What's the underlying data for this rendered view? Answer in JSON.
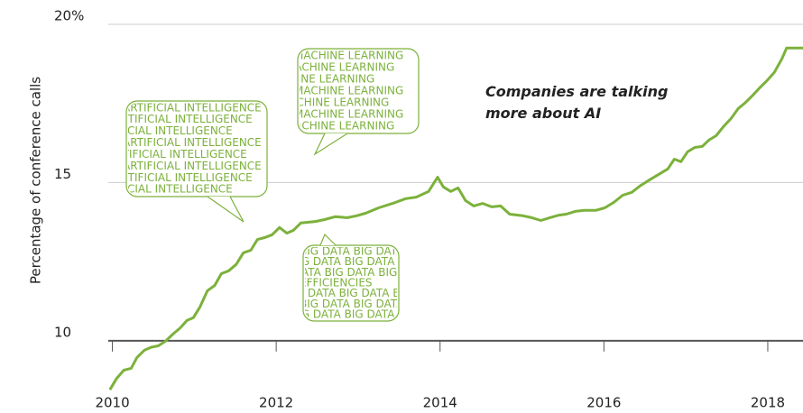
{
  "chart_data": {
    "type": "line",
    "y_axis_label": "Percentage of conference calls",
    "annotation": "Companies are talking more about AI",
    "bubbles": [
      {
        "lines": [
          "ARTIFICIAL INTELLIGENCE",
          "ARTIFICIAL INTELLIGENCE",
          "ARTIFICIAL INTELLIGENCE",
          "ARTIFICIAL INTELLIGENCE",
          "ARTIFICIAL INTELLIGENCE",
          "ARTIFICIAL INTELLIGENCE",
          "ARTIFICIAL INTELLIGENCE",
          "ARTIFICIAL INTELLIGENCE"
        ]
      },
      {
        "lines": [
          "MACHINE LEARNING",
          "MACHINE LEARNING",
          "MACHINE LEARNING",
          "MACHINE LEARNING",
          "MACHINE LEARNING",
          "MACHINE LEARNING",
          "MACHINE LEARNING"
        ]
      },
      {
        "lines": [
          "BIG DATA BIG DATA BIG DATA",
          "BIG DATA BIG DATA BIG DATA",
          "BIG DATA BIG DATA BIG DATA",
          "EFFICIENCIES",
          "BIG DATA BIG DATA BIG DATA",
          "BIG DATA BIG DATA BIG DATA",
          "BIG DATA BIG DATA BIG DATA"
        ]
      }
    ],
    "x": [
      2009.97,
      2010.05,
      2010.14,
      2010.23,
      2010.3,
      2010.39,
      2010.47,
      2010.56,
      2010.65,
      2010.74,
      2010.83,
      2010.91,
      2010.99,
      2011.07,
      2011.16,
      2011.25,
      2011.33,
      2011.42,
      2011.51,
      2011.6,
      2011.69,
      2011.77,
      2011.86,
      2011.95,
      2012.04,
      2012.13,
      2012.21,
      2012.3,
      2012.48,
      2012.59,
      2012.72,
      2012.87,
      2012.98,
      2013.09,
      2013.25,
      2013.42,
      2013.58,
      2013.71,
      2013.86,
      2013.97,
      2014.04,
      2014.13,
      2014.22,
      2014.31,
      2014.41,
      2014.52,
      2014.63,
      2014.74,
      2014.85,
      2015.01,
      2015.12,
      2015.23,
      2015.34,
      2015.45,
      2015.54,
      2015.65,
      2015.76,
      2015.9,
      2016.01,
      2016.12,
      2016.23,
      2016.34,
      2016.45,
      2016.56,
      2016.67,
      2016.78,
      2016.86,
      2016.94,
      2017.02,
      2017.11,
      2017.2,
      2017.28,
      2017.37,
      2017.46,
      2017.55,
      2017.64,
      2017.72,
      2017.81,
      2017.9,
      2017.99,
      2018.08,
      2018.17,
      2018.23,
      2018.43
    ],
    "series": [
      {
        "color": "#7cb13b",
        "values": [
          8.45,
          8.8,
          9.07,
          9.13,
          9.47,
          9.7,
          9.79,
          9.84,
          9.99,
          10.21,
          10.41,
          10.64,
          10.73,
          11.07,
          11.58,
          11.75,
          12.12,
          12.21,
          12.41,
          12.78,
          12.86,
          13.2,
          13.26,
          13.35,
          13.58,
          13.4,
          13.49,
          13.72,
          13.77,
          13.83,
          13.92,
          13.89,
          13.95,
          14.03,
          14.2,
          14.34,
          14.49,
          14.54,
          14.72,
          15.17,
          14.86,
          14.72,
          14.83,
          14.43,
          14.26,
          14.34,
          14.23,
          14.26,
          14.0,
          13.95,
          13.89,
          13.8,
          13.89,
          13.97,
          14.0,
          14.09,
          14.12,
          14.12,
          14.2,
          14.37,
          14.6,
          14.69,
          14.91,
          15.09,
          15.26,
          15.43,
          15.74,
          15.66,
          15.97,
          16.11,
          16.14,
          16.34,
          16.48,
          16.77,
          17.02,
          17.34,
          17.51,
          17.74,
          17.99,
          18.22,
          18.48,
          18.9,
          19.25,
          19.25
        ]
      }
    ],
    "xlim": [
      2009.95,
      2018.43
    ],
    "ylim": [
      8.2,
      20.2
    ],
    "xticks": [
      2010,
      2012,
      2014,
      2016,
      2018
    ],
    "yticks": [
      10,
      15,
      {
        "value": 20,
        "label": "20%"
      }
    ],
    "grid": true
  }
}
